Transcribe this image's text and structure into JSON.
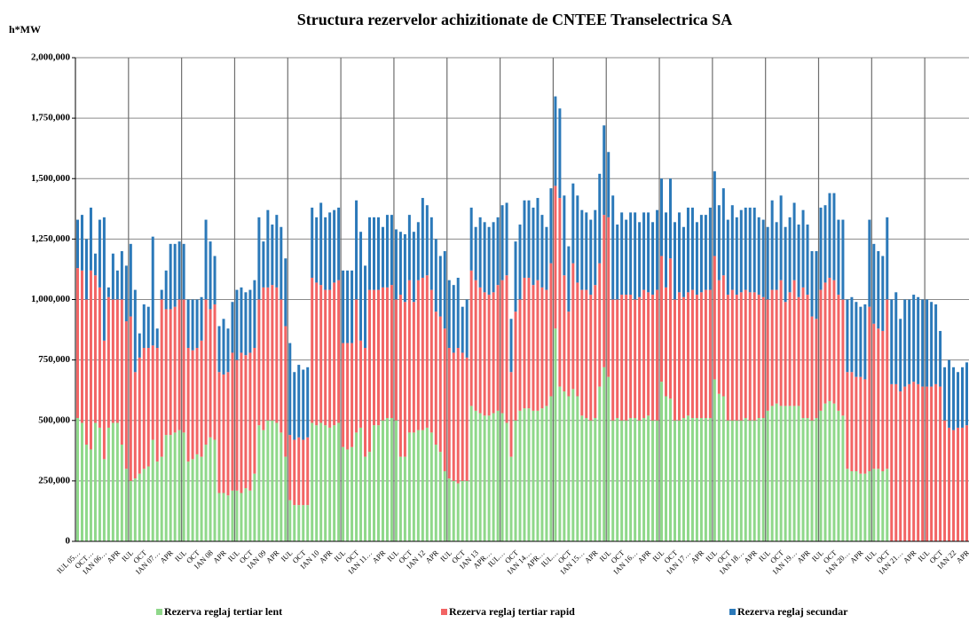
{
  "chart_data": {
    "type": "stacked_bar",
    "title": "Structura rezervelor achizitionate de CNTEE Transelectrica SA",
    "ylabel": "h*MW",
    "ylim": [
      0,
      2000000
    ],
    "yticks": [
      0,
      {
        "value": 250000,
        "label": "250,000"
      },
      {
        "value": 500000,
        "label": "500,000"
      },
      {
        "value": 750000,
        "label": "750,000"
      },
      {
        "value": 1000000,
        "label": "1,000,000"
      },
      {
        "value": 1250000,
        "label": "1,250,000"
      },
      {
        "value": 1500000,
        "label": "1,500,000"
      },
      {
        "value": 1750000,
        "label": "1,750,000"
      },
      {
        "value": 2000000,
        "label": "2,000,000"
      }
    ],
    "grid": true,
    "legend": "bottom",
    "categories": [
      "IUL 05…",
      null,
      null,
      "OCT…",
      null,
      null,
      "IAN 06…",
      null,
      null,
      "APR",
      null,
      null,
      "IUL",
      null,
      null,
      "OCT",
      null,
      null,
      "IAN 07…",
      null,
      null,
      "APR",
      null,
      null,
      "IUL",
      null,
      null,
      "OCT",
      null,
      null,
      "IAN 08",
      null,
      null,
      "APR",
      null,
      null,
      "IUL",
      null,
      null,
      "OCT",
      null,
      null,
      "IAN 09",
      null,
      null,
      "APR",
      null,
      null,
      "IUL",
      null,
      null,
      "OCT",
      null,
      null,
      "IAN 10",
      null,
      null,
      "APR",
      null,
      null,
      "IUL",
      null,
      null,
      "OCT",
      null,
      null,
      "IAN 11…",
      null,
      null,
      "APR",
      null,
      null,
      "IUL",
      null,
      null,
      "OCT",
      null,
      null,
      "IAN 12",
      null,
      null,
      "APR",
      null,
      null,
      "IUL",
      null,
      null,
      "OCT",
      null,
      null,
      "IAN 13",
      null,
      null,
      "APR…",
      null,
      null,
      "IUL…",
      null,
      null,
      "OCT",
      null,
      null,
      "IAN 14…",
      null,
      null,
      "APR…",
      null,
      null,
      "IUL…",
      null,
      null,
      "OCT",
      null,
      null,
      "IAN 15…",
      null,
      null,
      "APR",
      null,
      null,
      "IUL",
      null,
      null,
      "OCT",
      null,
      null,
      "IAN 16…",
      null,
      null,
      "APR",
      null,
      null,
      "IUL",
      null,
      null,
      "OCT",
      null,
      null,
      "IAN 17…",
      null,
      null,
      "APR",
      null,
      null,
      "IUL",
      null,
      null,
      "OCT",
      null,
      null,
      "IAN 18…",
      null,
      null,
      "APR",
      null,
      null,
      "IUL",
      null,
      null,
      "OCT",
      null,
      null,
      "IAN 19…",
      null,
      null,
      "APR",
      null,
      null,
      "IUL",
      null,
      null,
      "OCT",
      null,
      null,
      "IAN 20…",
      null,
      null,
      "APR",
      null,
      null,
      "IUL",
      null,
      null,
      "OCT",
      null,
      null,
      "IAN 21…",
      null,
      null,
      "APR",
      null,
      null,
      "IUL",
      null,
      null,
      "OCT",
      null,
      null,
      "IAN 22",
      null,
      null,
      "APR"
    ],
    "series": [
      {
        "name": "Rezerva reglaj tertiar lent",
        "color": "#8fd88a",
        "values": [
          510000,
          490000,
          400000,
          380000,
          490000,
          470000,
          340000,
          470000,
          490000,
          490000,
          400000,
          300000,
          250000,
          260000,
          280000,
          300000,
          310000,
          420000,
          330000,
          350000,
          440000,
          440000,
          450000,
          460000,
          450000,
          330000,
          340000,
          360000,
          350000,
          400000,
          430000,
          420000,
          200000,
          200000,
          190000,
          210000,
          210000,
          200000,
          220000,
          210000,
          280000,
          480000,
          460000,
          500000,
          500000,
          490000,
          450000,
          350000,
          170000,
          150000,
          150000,
          150000,
          150000,
          490000,
          480000,
          490000,
          480000,
          470000,
          480000,
          490000,
          390000,
          380000,
          390000,
          450000,
          470000,
          350000,
          370000,
          480000,
          480000,
          500000,
          510000,
          510000,
          500000,
          350000,
          350000,
          450000,
          450000,
          460000,
          460000,
          470000,
          450000,
          400000,
          370000,
          290000,
          260000,
          250000,
          240000,
          250000,
          250000,
          560000,
          540000,
          530000,
          520000,
          520000,
          530000,
          540000,
          530000,
          490000,
          350000,
          500000,
          540000,
          550000,
          550000,
          540000,
          540000,
          550000,
          560000,
          600000,
          880000,
          640000,
          620000,
          600000,
          630000,
          600000,
          520000,
          510000,
          500000,
          510000,
          640000,
          720000,
          680000,
          500000,
          510000,
          500000,
          500000,
          510000,
          510000,
          500000,
          510000,
          520000,
          500000,
          500000,
          660000,
          600000,
          590000,
          500000,
          500000,
          510000,
          520000,
          510000,
          510000,
          510000,
          510000,
          510000,
          670000,
          610000,
          600000,
          500000,
          500000,
          500000,
          500000,
          510000,
          500000,
          500000,
          510000,
          510000,
          540000,
          560000,
          570000,
          560000,
          560000,
          560000,
          560000,
          560000,
          510000,
          510000,
          500000,
          510000,
          540000,
          570000,
          580000,
          570000,
          540000,
          520000,
          300000,
          290000,
          290000,
          280000,
          280000,
          290000,
          300000,
          300000,
          290000,
          300000,
          0,
          0,
          0,
          0,
          0,
          0,
          0,
          0,
          0,
          0,
          0,
          0,
          0,
          0,
          0,
          0,
          0,
          0
        ]
      },
      {
        "name": "Rezerva reglaj tertiar rapid",
        "color": "#f26464",
        "values": [
          620000,
          630000,
          600000,
          740000,
          610000,
          580000,
          490000,
          540000,
          510000,
          510000,
          600000,
          610000,
          680000,
          440000,
          480000,
          500000,
          490000,
          390000,
          470000,
          650000,
          520000,
          520000,
          520000,
          540000,
          550000,
          470000,
          450000,
          440000,
          480000,
          600000,
          530000,
          560000,
          500000,
          490000,
          510000,
          570000,
          540000,
          580000,
          550000,
          570000,
          520000,
          520000,
          590000,
          550000,
          560000,
          560000,
          550000,
          540000,
          270000,
          270000,
          280000,
          270000,
          280000,
          600000,
          590000,
          570000,
          560000,
          570000,
          590000,
          590000,
          430000,
          440000,
          430000,
          550000,
          360000,
          450000,
          670000,
          560000,
          560000,
          550000,
          540000,
          550000,
          500000,
          670000,
          640000,
          630000,
          540000,
          620000,
          630000,
          630000,
          590000,
          550000,
          560000,
          590000,
          540000,
          530000,
          560000,
          530000,
          510000,
          560000,
          540000,
          520000,
          510000,
          500000,
          500000,
          520000,
          550000,
          610000,
          350000,
          450000,
          460000,
          540000,
          540000,
          520000,
          540000,
          500000,
          480000,
          550000,
          590000,
          780000,
          480000,
          350000,
          520000,
          470000,
          520000,
          530000,
          520000,
          550000,
          510000,
          630000,
          660000,
          500000,
          490000,
          520000,
          520000,
          510000,
          490000,
          510000,
          530000,
          510000,
          520000,
          540000,
          520000,
          450000,
          580000,
          500000,
          530000,
          500000,
          510000,
          530000,
          510000,
          520000,
          530000,
          530000,
          510000,
          470000,
          500000,
          520000,
          540000,
          520000,
          530000,
          530000,
          530000,
          530000,
          510000,
          500000,
          460000,
          480000,
          470000,
          520000,
          430000,
          470000,
          520000,
          450000,
          540000,
          510000,
          430000,
          410000,
          500000,
          500000,
          510000,
          510000,
          480000,
          480000,
          400000,
          410000,
          390000,
          400000,
          390000,
          680000,
          600000,
          580000,
          580000,
          700000,
          650000,
          650000,
          620000,
          640000,
          650000,
          660000,
          650000,
          640000,
          640000,
          640000,
          650000,
          640000,
          500000,
          470000,
          460000,
          470000,
          470000,
          480000
        ]
      },
      {
        "name": "Rezerva reglaj secundar",
        "color": "#2b79b9",
        "values": [
          200000,
          230000,
          250000,
          260000,
          90000,
          280000,
          510000,
          40000,
          190000,
          120000,
          200000,
          230000,
          300000,
          340000,
          100000,
          180000,
          170000,
          450000,
          80000,
          40000,
          160000,
          270000,
          260000,
          240000,
          230000,
          200000,
          210000,
          200000,
          180000,
          330000,
          280000,
          200000,
          190000,
          230000,
          180000,
          210000,
          290000,
          270000,
          260000,
          260000,
          280000,
          340000,
          190000,
          320000,
          250000,
          300000,
          300000,
          280000,
          380000,
          280000,
          300000,
          290000,
          290000,
          290000,
          270000,
          340000,
          300000,
          320000,
          300000,
          300000,
          300000,
          300000,
          300000,
          410000,
          450000,
          340000,
          300000,
          300000,
          300000,
          250000,
          300000,
          290000,
          290000,
          260000,
          280000,
          270000,
          290000,
          240000,
          330000,
          290000,
          300000,
          300000,
          250000,
          320000,
          280000,
          280000,
          290000,
          190000,
          240000,
          260000,
          220000,
          290000,
          290000,
          280000,
          290000,
          280000,
          310000,
          300000,
          220000,
          290000,
          310000,
          320000,
          320000,
          320000,
          340000,
          300000,
          260000,
          310000,
          370000,
          370000,
          330000,
          270000,
          330000,
          360000,
          330000,
          320000,
          310000,
          310000,
          370000,
          370000,
          270000,
          430000,
          310000,
          340000,
          310000,
          340000,
          360000,
          310000,
          320000,
          330000,
          300000,
          330000,
          320000,
          310000,
          330000,
          320000,
          330000,
          290000,
          350000,
          340000,
          300000,
          320000,
          310000,
          340000,
          350000,
          310000,
          360000,
          310000,
          350000,
          320000,
          340000,
          340000,
          350000,
          350000,
          320000,
          320000,
          300000,
          370000,
          280000,
          350000,
          310000,
          310000,
          320000,
          300000,
          320000,
          290000,
          270000,
          280000,
          340000,
          320000,
          350000,
          360000,
          310000,
          330000,
          300000,
          310000,
          310000,
          290000,
          310000,
          360000,
          330000,
          320000,
          310000,
          340000,
          350000,
          380000,
          300000,
          360000,
          350000,
          360000,
          360000,
          360000,
          360000,
          350000,
          330000,
          230000,
          220000,
          280000,
          260000,
          230000,
          250000,
          260000
        ]
      }
    ]
  }
}
